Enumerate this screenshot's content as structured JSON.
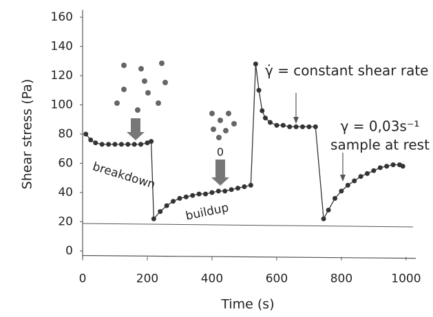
{
  "chart_data": {
    "type": "line",
    "xlabel": "Time (s)",
    "ylabel": "Shear stress (Pa)",
    "xlim": [
      0,
      1030
    ],
    "ylim": [
      -5,
      165
    ],
    "xticks": [
      0,
      200,
      400,
      600,
      800,
      1000
    ],
    "yticks": [
      0,
      20,
      40,
      60,
      80,
      100,
      120,
      140,
      160
    ],
    "series": [
      {
        "color": "#333333",
        "x": [
          10,
          25,
          40,
          60,
          80,
          100,
          120,
          140,
          160,
          180,
          200,
          212,
          220,
          240,
          260,
          280,
          300,
          320,
          340,
          360,
          380,
          400,
          420,
          440,
          460,
          480,
          500,
          520,
          535,
          545,
          555,
          565,
          580,
          600,
          620,
          640,
          660,
          680,
          700,
          720,
          745,
          760,
          780,
          800,
          820,
          840,
          860,
          880,
          900,
          920,
          940,
          960,
          980,
          990
        ],
        "values": [
          80,
          76,
          74,
          73,
          73,
          73,
          73,
          73,
          73,
          73,
          74,
          75,
          22,
          27,
          31,
          34,
          36,
          37,
          38,
          39,
          39,
          40,
          41,
          41,
          42,
          43,
          44,
          45,
          128,
          110,
          96,
          91,
          88,
          86,
          86,
          85,
          85,
          85,
          85,
          85,
          22,
          28,
          36,
          41,
          45,
          48,
          51,
          53,
          55,
          57,
          58,
          59,
          59,
          58
        ]
      }
    ],
    "annotations": [
      "breakdown",
      "buildup",
      "0",
      "γ̇ = constant shear rate",
      "γ = 0,03s⁻¹",
      "sample at rest"
    ]
  }
}
